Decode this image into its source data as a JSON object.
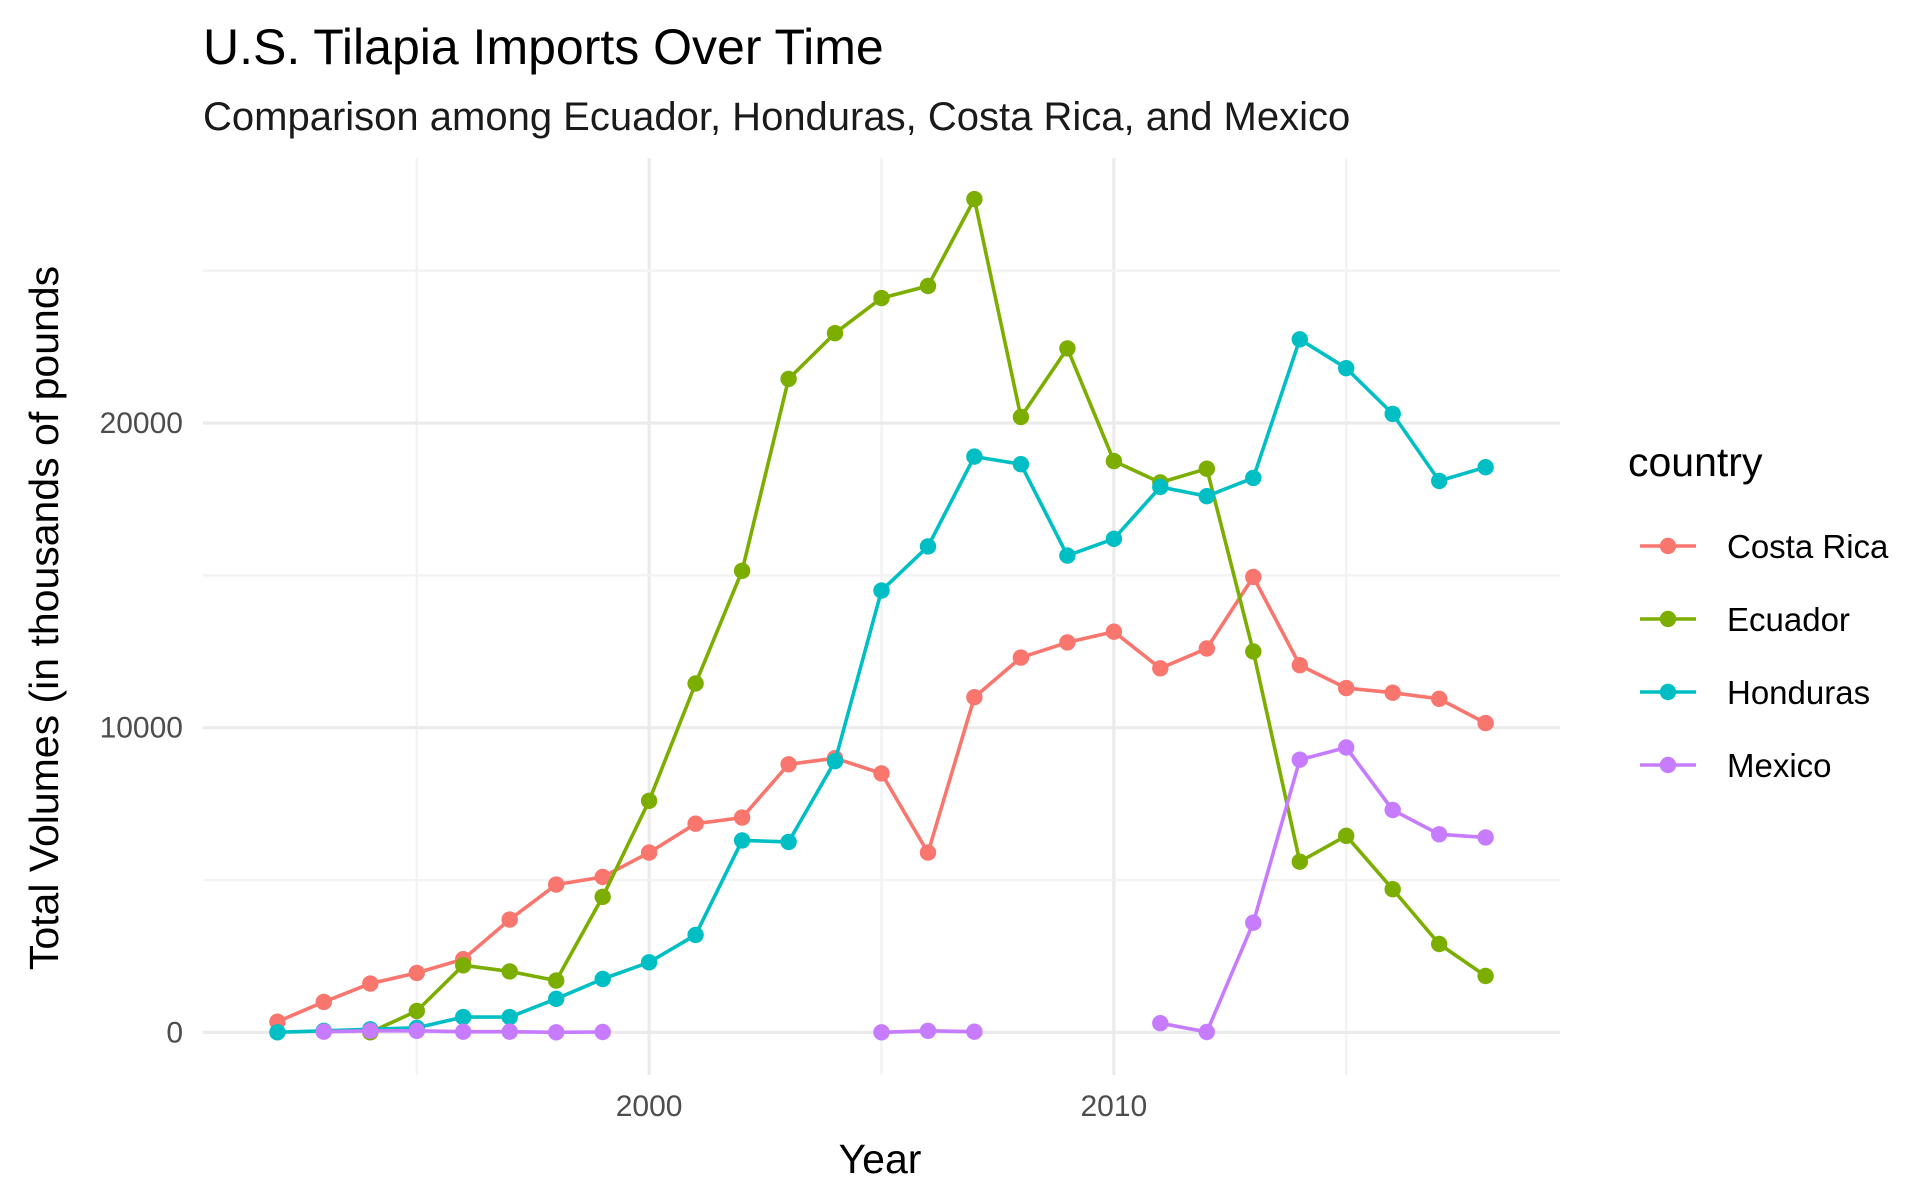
{
  "chart_data": {
    "type": "line",
    "title": "U.S. Tilapia Imports Over Time",
    "subtitle": "Comparison among Ecuador, Honduras, Costa Rica, and Mexico",
    "xlabel": "Year",
    "ylabel": "Total Volumes (in thousands of pounds",
    "xlim": [
      1990.4,
      2019.6
    ],
    "ylim": [
      -1400,
      28700
    ],
    "x_ticks": [
      2000,
      2010
    ],
    "x_tick_labels": [
      "2000",
      "2010"
    ],
    "y_ticks": [
      0,
      10000,
      20000
    ],
    "y_tick_labels": [
      "0",
      "10000",
      "20000"
    ],
    "grid": true,
    "legend": {
      "title": "country",
      "position": "right",
      "entries": [
        "Costa Rica",
        "Ecuador",
        "Honduras",
        "Mexico"
      ]
    },
    "series": [
      {
        "name": "Costa Rica",
        "color": "#F8766D",
        "points": [
          [
            1992,
            350
          ],
          [
            1993,
            1000
          ],
          [
            1994,
            1600
          ],
          [
            1995,
            1950
          ],
          [
            1996,
            2400
          ],
          [
            1997,
            3700
          ],
          [
            1998,
            4850
          ],
          [
            1999,
            5100
          ],
          [
            2000,
            5900
          ],
          [
            2001,
            6850
          ],
          [
            2002,
            7050
          ],
          [
            2003,
            8800
          ],
          [
            2004,
            9000
          ],
          [
            2005,
            8500
          ],
          [
            2006,
            5900
          ],
          [
            2007,
            11000
          ],
          [
            2008,
            12300
          ],
          [
            2009,
            12800
          ],
          [
            2010,
            13150
          ],
          [
            2011,
            11950
          ],
          [
            2012,
            12600
          ],
          [
            2013,
            14950
          ],
          [
            2014,
            12050
          ],
          [
            2015,
            11300
          ],
          [
            2016,
            11150
          ],
          [
            2017,
            10950
          ],
          [
            2018,
            10150
          ]
        ]
      },
      {
        "name": "Ecuador",
        "color": "#7CAE00",
        "points": [
          [
            1994,
            0
          ],
          [
            1995,
            700
          ],
          [
            1996,
            2200
          ],
          [
            1997,
            2000
          ],
          [
            1998,
            1700
          ],
          [
            1999,
            4450
          ],
          [
            2000,
            7600
          ],
          [
            2001,
            11450
          ],
          [
            2002,
            15150
          ],
          [
            2003,
            21450
          ],
          [
            2004,
            22950
          ],
          [
            2005,
            24100
          ],
          [
            2006,
            24500
          ],
          [
            2007,
            27350
          ],
          [
            2008,
            20200
          ],
          [
            2009,
            22450
          ],
          [
            2010,
            18750
          ],
          [
            2011,
            18050
          ],
          [
            2012,
            18500
          ],
          [
            2013,
            12500
          ],
          [
            2014,
            5600
          ],
          [
            2015,
            6450
          ],
          [
            2016,
            4700
          ],
          [
            2017,
            2900
          ],
          [
            2018,
            1850
          ]
        ]
      },
      {
        "name": "Honduras",
        "color": "#00BFC4",
        "points": [
          [
            1992,
            0
          ],
          [
            1993,
            50
          ],
          [
            1994,
            100
          ],
          [
            1995,
            150
          ],
          [
            1996,
            500
          ],
          [
            1997,
            500
          ],
          [
            1998,
            1100
          ],
          [
            1999,
            1750
          ],
          [
            2000,
            2300
          ],
          [
            2001,
            3200
          ],
          [
            2002,
            6300
          ],
          [
            2003,
            6250
          ],
          [
            2004,
            8900
          ],
          [
            2005,
            14500
          ],
          [
            2006,
            15950
          ],
          [
            2007,
            18900
          ],
          [
            2008,
            18650
          ],
          [
            2009,
            15650
          ],
          [
            2010,
            16200
          ],
          [
            2011,
            17900
          ],
          [
            2012,
            17600
          ],
          [
            2013,
            18200
          ],
          [
            2014,
            22750
          ],
          [
            2015,
            21800
          ],
          [
            2016,
            20300
          ],
          [
            2017,
            18100
          ],
          [
            2018,
            18550
          ]
        ]
      },
      {
        "name": "Mexico",
        "color": "#C77CFF",
        "segments": [
          [
            [
              1993,
              20
            ],
            [
              1994,
              50
            ],
            [
              1995,
              50
            ],
            [
              1996,
              20
            ],
            [
              1997,
              20
            ],
            [
              1998,
              0
            ],
            [
              1999,
              10
            ]
          ],
          [
            [
              2005,
              0
            ],
            [
              2006,
              50
            ],
            [
              2007,
              20
            ]
          ],
          [
            [
              2011,
              300
            ],
            [
              2012,
              10
            ],
            [
              2013,
              3600
            ],
            [
              2014,
              8950
            ],
            [
              2015,
              9350
            ],
            [
              2016,
              7300
            ],
            [
              2017,
              6500
            ],
            [
              2018,
              6400
            ]
          ]
        ]
      }
    ]
  }
}
